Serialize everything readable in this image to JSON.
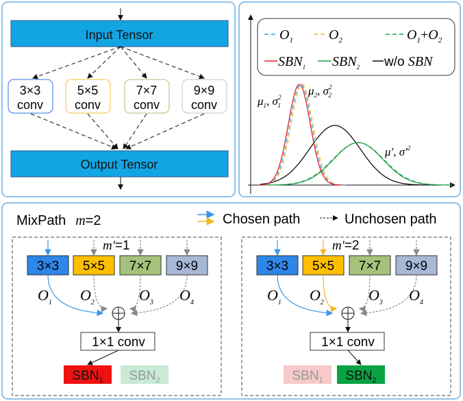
{
  "top_left": {
    "input_label": "Input Tensor",
    "output_label": "Output Tensor",
    "convs": [
      {
        "k": "3×3",
        "sub": "conv",
        "color": "#2e75e6"
      },
      {
        "k": "5×5",
        "sub": "conv",
        "color": "#f2c12e"
      },
      {
        "k": "7×7",
        "sub": "conv",
        "color": "#a9c07a"
      },
      {
        "k": "9×9",
        "sub": "conv",
        "color": "#b8c7d9"
      }
    ],
    "tensor_color": "#12a5e3"
  },
  "top_right": {
    "legend": {
      "o1": "O",
      "o1_sub": "1",
      "o2": "O",
      "o2_sub": "2",
      "sum_a": "O",
      "sum_a_sub": "1",
      "plus": "+",
      "sum_b": "O",
      "sum_b_sub": "2",
      "sbn1": "SBN",
      "sbn1_sub": "1",
      "sbn2": "SBN",
      "sbn2_sub": "2",
      "wo": "w/o",
      "wo_sbn": "SBN"
    },
    "annotations": {
      "a1": "μ",
      "a1_sub": "1",
      "a1_rest": ", σ",
      "a1_sup": "2",
      "a1_sub2": "1",
      "a2": "μ",
      "a2_sub": "2",
      "a2_rest": ", σ",
      "a2_sup": "2",
      "a2_sub2": "2",
      "a3": "μ′, σ′",
      "a3_sup": "2"
    },
    "colors": {
      "o1": "#2fa3e0",
      "o2": "#f2b822",
      "sum": "#1fa04a",
      "sbn1": "#e8202a",
      "sbn2": "#1fa04a",
      "wo": "#111111"
    }
  },
  "bottom": {
    "title": "MixPath",
    "m_label": "m",
    "m_value": "=2",
    "legend_chosen": "Chosen path",
    "legend_unchosen": "Unchosen path",
    "ops": [
      "3×3",
      "5×5",
      "7×7",
      "9×9"
    ],
    "op_colors": [
      "#2e86e8",
      "#ffbf00",
      "#a5c27a",
      "#a6b8d6"
    ],
    "outputs": [
      "O",
      "O",
      "O",
      "O"
    ],
    "output_subs": [
      "1",
      "2",
      "3",
      "4"
    ],
    "conv1x1": "1×1 conv",
    "left": {
      "m_prime": "m′",
      "m_prime_value": "=1",
      "sbn1": "SBN",
      "sbn1_sub": "1",
      "sbn2": "SBN",
      "sbn2_sub": "2"
    },
    "right": {
      "m_prime": "m′",
      "m_prime_value": "=2",
      "sbn1": "SBN",
      "sbn1_sub": "1",
      "sbn2": "SBN",
      "sbn2_sub": "2"
    }
  }
}
